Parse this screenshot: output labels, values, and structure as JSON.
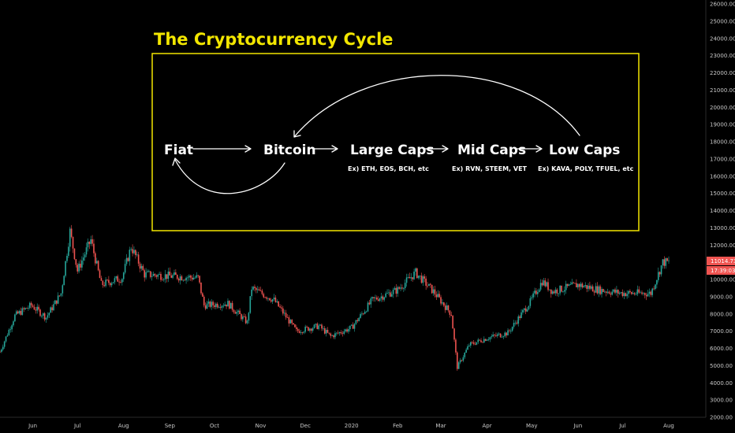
{
  "colors": {
    "background": "#000000",
    "up_candle": "#26a69a",
    "down_candle": "#ef5350",
    "annotation_border": "#f2e600",
    "title": "#f2e600",
    "price_badge": "#ef5350",
    "axis_text": "#c8c8c8",
    "axis_line": "#2a2a2a",
    "arrows": "#ffffff"
  },
  "annotation": {
    "title": "The Cryptocurrency Cycle",
    "stages": [
      "Fiat",
      "Bitcoin",
      "Large Caps",
      "Mid Caps",
      "Low Caps"
    ],
    "examples": {
      "large_caps": "Ex) ETH, EOS, BCH, etc",
      "mid_caps": "Ex) RVN, STEEM, VET",
      "low_caps": "Ex) KAVA, POLY, TFUEL, etc"
    }
  },
  "price_axis": {
    "last_price": "11014.73",
    "countdown": "17:39:03"
  },
  "chart_data": {
    "type": "candlestick",
    "title": "",
    "xlabel": "",
    "ylabel": "",
    "ylim": [
      2000,
      26000
    ],
    "y_ticks": [
      "2000.00",
      "3000.00",
      "4000.00",
      "5000.00",
      "6000.00",
      "7000.00",
      "8000.00",
      "9000.00",
      "10000.00",
      "11000.00",
      "12000.00",
      "13000.00",
      "14000.00",
      "15000.00",
      "16000.00",
      "17000.00",
      "18000.00",
      "19000.00",
      "20000.00",
      "21000.00",
      "22000.00",
      "23000.00",
      "24000.00",
      "25000.00",
      "26000.00"
    ],
    "x_ticks": [
      "Jun",
      "Jul",
      "Aug",
      "Sep",
      "Oct",
      "Nov",
      "Dec",
      "2020",
      "Feb",
      "Mar",
      "Apr",
      "May",
      "Jun",
      "Jul",
      "Aug"
    ],
    "grid": false,
    "approx_close_path": [
      [
        "2019-05-10",
        5800
      ],
      [
        "2019-05-20",
        7900
      ],
      [
        "2019-05-31",
        8500
      ],
      [
        "2019-06-10",
        7800
      ],
      [
        "2019-06-20",
        9200
      ],
      [
        "2019-06-26",
        12800
      ],
      [
        "2019-07-01",
        10500
      ],
      [
        "2019-07-10",
        12300
      ],
      [
        "2019-07-17",
        9700
      ],
      [
        "2019-07-31",
        10100
      ],
      [
        "2019-08-06",
        11900
      ],
      [
        "2019-08-15",
        10300
      ],
      [
        "2019-09-01",
        10200
      ],
      [
        "2019-09-20",
        10100
      ],
      [
        "2019-09-24",
        8500
      ],
      [
        "2019-10-10",
        8600
      ],
      [
        "2019-10-23",
        7500
      ],
      [
        "2019-10-26",
        9500
      ],
      [
        "2019-11-10",
        8800
      ],
      [
        "2019-11-25",
        7000
      ],
      [
        "2019-12-10",
        7300
      ],
      [
        "2019-12-18",
        6700
      ],
      [
        "2020-01-01",
        7200
      ],
      [
        "2020-01-15",
        8800
      ],
      [
        "2020-02-01",
        9400
      ],
      [
        "2020-02-13",
        10400
      ],
      [
        "2020-02-25",
        9300
      ],
      [
        "2020-03-08",
        8000
      ],
      [
        "2020-03-12",
        4900
      ],
      [
        "2020-03-20",
        6200
      ],
      [
        "2020-04-01",
        6600
      ],
      [
        "2020-04-15",
        6900
      ],
      [
        "2020-04-30",
        8700
      ],
      [
        "2020-05-08",
        9900
      ],
      [
        "2020-05-15",
        9300
      ],
      [
        "2020-06-01",
        9700
      ],
      [
        "2020-06-15",
        9400
      ],
      [
        "2020-07-01",
        9200
      ],
      [
        "2020-07-20",
        9200
      ],
      [
        "2020-07-28",
        11000
      ],
      [
        "2020-08-01",
        11000
      ]
    ]
  }
}
